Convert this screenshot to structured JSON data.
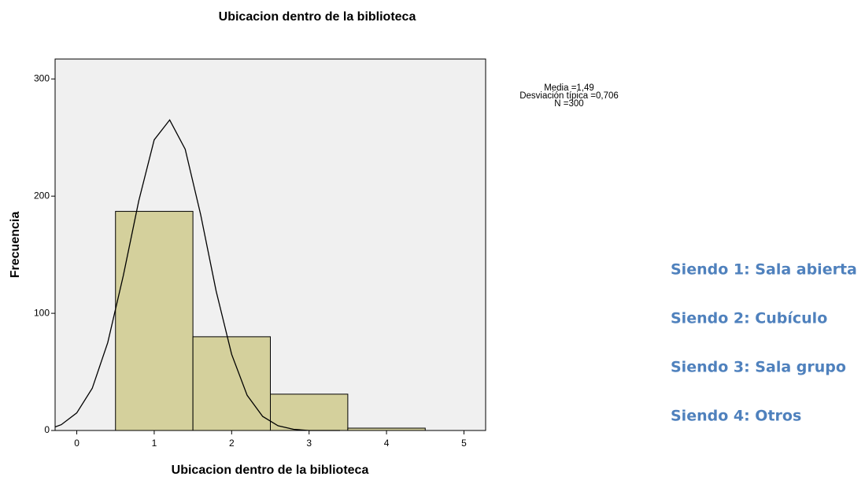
{
  "chart_data": {
    "type": "histogram",
    "title": "Ubicacion dentro de la biblioteca",
    "x_label": "Ubicacion dentro de la biblioteca",
    "y_label": "Frecuencia",
    "bins": [
      0.5,
      1.5,
      2.5,
      3.5,
      4.5
    ],
    "values": [
      187,
      80,
      31,
      2
    ],
    "color": "#d4d09c",
    "curve": {
      "x": [
        -0.28,
        -0.2,
        0,
        0.2,
        0.4,
        0.6,
        0.8,
        1.0,
        1.2,
        1.4,
        1.6,
        1.8,
        2.0,
        2.2,
        2.4,
        2.6,
        2.8,
        3.0,
        3.4
      ],
      "y": [
        3,
        5,
        15,
        36,
        75,
        132,
        196,
        248,
        265,
        240,
        184,
        119,
        65,
        30,
        12,
        4,
        1,
        0,
        0
      ]
    },
    "xlim": [
      -0.28,
      5.28
    ],
    "xticks": [
      0,
      1,
      2,
      3,
      4,
      5
    ],
    "ylim": [
      0,
      317
    ],
    "yticks": [
      0,
      100,
      200,
      300
    ],
    "stats": [
      "Media =1,49",
      "Desviación típica =0,706",
      "N =300"
    ],
    "notes": [
      "Siendo 1: Sala abierta",
      "Siendo 2: Cubículo",
      "Siendo 3: Sala grupo",
      "Siendo 4: Otros"
    ]
  }
}
